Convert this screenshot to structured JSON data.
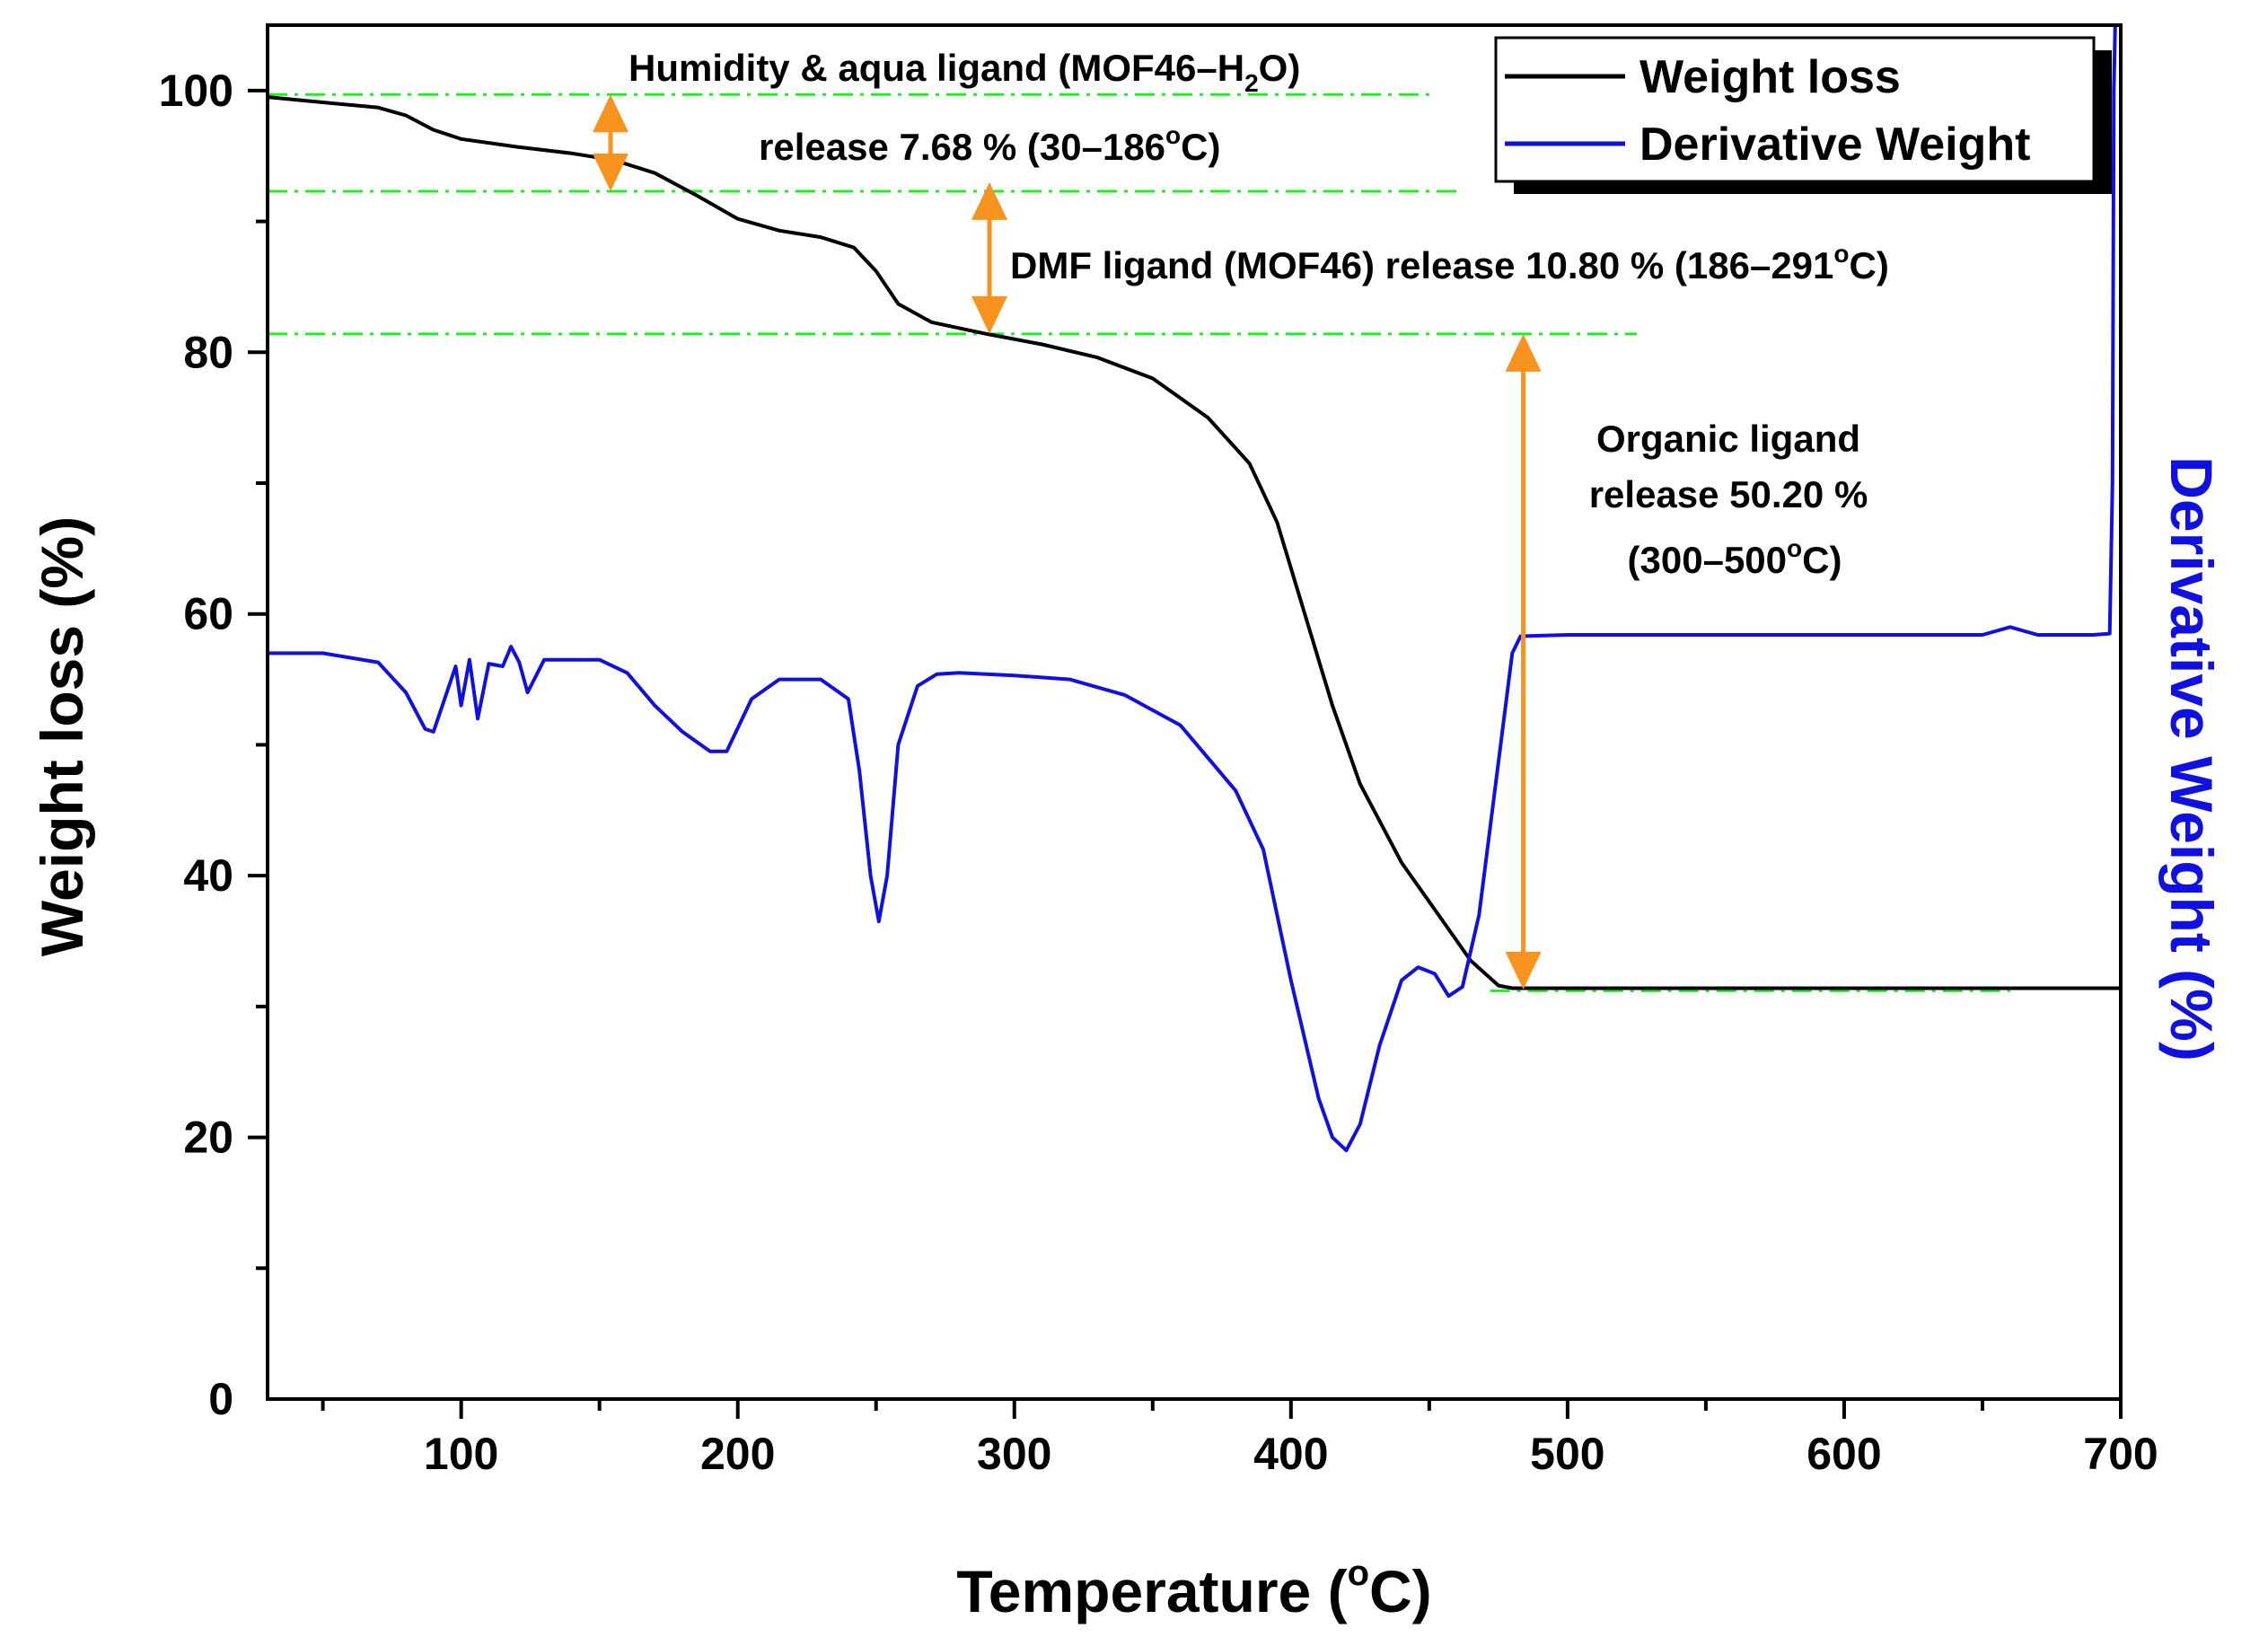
{
  "chart_data": {
    "type": "line",
    "xlabel": "Temperature (°C)",
    "ylabel": "Weight loss (%)",
    "y2label": "Derivative Weight (%)",
    "xlim": [
      30,
      700
    ],
    "ylim": [
      0,
      105
    ],
    "xticks": [
      100,
      200,
      300,
      400,
      500,
      600,
      700
    ],
    "yticks": [
      0,
      20,
      40,
      60,
      80,
      100
    ],
    "grid": false,
    "legend_position": "top-right",
    "legend": [
      {
        "name": "Weight loss",
        "color": "#000000"
      },
      {
        "name": "Derivative Weight",
        "color": "#1010e0"
      }
    ],
    "series": [
      {
        "name": "Weight loss",
        "color": "#000000",
        "x": [
          30,
          50,
          70,
          80,
          90,
          100,
          120,
          140,
          155,
          170,
          185,
          200,
          215,
          230,
          242,
          250,
          258,
          270,
          290,
          310,
          330,
          350,
          370,
          385,
          395,
          405,
          415,
          425,
          440,
          455,
          465,
          475,
          480,
          500,
          600,
          700
        ],
        "y": [
          99.5,
          99.1,
          98.7,
          98.1,
          97.0,
          96.3,
          95.7,
          95.2,
          94.7,
          93.7,
          92.0,
          90.2,
          89.3,
          88.8,
          88.0,
          86.2,
          83.7,
          82.3,
          81.4,
          80.6,
          79.6,
          78.0,
          75.0,
          71.5,
          67.0,
          60.0,
          53.0,
          47.0,
          41.0,
          36.5,
          33.5,
          31.6,
          31.4,
          31.4,
          31.4,
          31.4
        ]
      },
      {
        "name": "Derivative Weight",
        "color": "#1010e0",
        "x": [
          30,
          50,
          70,
          80,
          87,
          90,
          94,
          98,
          100,
          103,
          106,
          110,
          115,
          118,
          121,
          124,
          130,
          150,
          160,
          170,
          180,
          190,
          196,
          205,
          215,
          230,
          240,
          244,
          248,
          251,
          254,
          258,
          265,
          272,
          280,
          300,
          320,
          340,
          360,
          380,
          390,
          400,
          410,
          415,
          420,
          425,
          432,
          440,
          446,
          452,
          457,
          462,
          468,
          474,
          480,
          483,
          500,
          550,
          600,
          650,
          660,
          670,
          690,
          696,
          697,
          697.5,
          698
        ],
        "y": [
          57.0,
          57.0,
          56.3,
          54.0,
          51.2,
          51.0,
          53.5,
          56.0,
          53.0,
          56.5,
          52.0,
          56.2,
          56.0,
          57.5,
          56.3,
          54.0,
          56.5,
          56.5,
          55.5,
          53.0,
          51.0,
          49.5,
          49.5,
          53.5,
          55.0,
          55.0,
          53.5,
          48.0,
          40.0,
          36.5,
          40.0,
          50.0,
          54.5,
          55.4,
          55.5,
          55.3,
          55.0,
          53.8,
          51.5,
          46.5,
          42.0,
          32.0,
          23.0,
          20.0,
          19.0,
          21.0,
          27.0,
          32.0,
          33.0,
          32.5,
          30.8,
          31.5,
          37.0,
          47.0,
          57.0,
          58.3,
          58.4,
          58.4,
          58.4,
          58.4,
          59.0,
          58.4,
          58.4,
          58.5,
          70.0,
          100.0,
          105.0
        ]
      }
    ],
    "reference_lines": [
      {
        "y": 99.7,
        "x_start": 30,
        "x_end": 450
      },
      {
        "y": 92.3,
        "x_start": 30,
        "x_end": 460
      },
      {
        "y": 81.4,
        "x_start": 30,
        "x_end": 525
      },
      {
        "y": 31.2,
        "x_start": 472,
        "x_end": 660
      }
    ],
    "arrows": [
      {
        "x": 154,
        "y_top": 99.7,
        "y_bottom": 92.3
      },
      {
        "x": 291,
        "y_top": 93.0,
        "y_bottom": 81.4
      },
      {
        "x": 484,
        "y_top": 81.4,
        "y_bottom": 31.3
      }
    ],
    "annotations": [
      {
        "text": "Humidity & aqua ligand (MOF46–H",
        "sub": "2",
        "after": "O)"
      },
      {
        "text": "release 7.68 % (30–186",
        "sup": "o",
        "after": "C)"
      },
      {
        "text": "DMF ligand (MOF46) release 10.80 % (186–291",
        "sup": "o",
        "after": "C)"
      },
      {
        "text": "Organic ligand"
      },
      {
        "text": "release 50.20 %"
      },
      {
        "text": "(300–500",
        "sup": "o",
        "after": "C)"
      }
    ]
  },
  "colors": {
    "weight_loss": "#000000",
    "derivative": "#1010e0",
    "reference": "#22ee22",
    "arrow": "#f7931e"
  }
}
